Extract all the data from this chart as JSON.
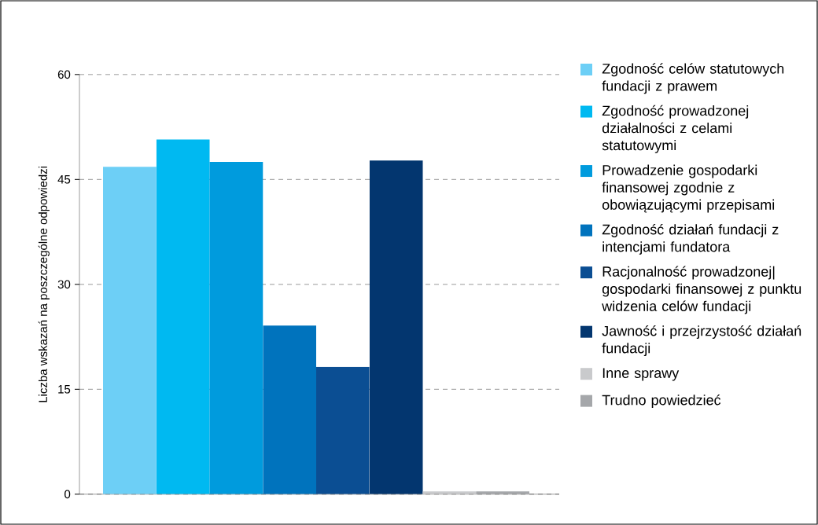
{
  "chart_data": {
    "type": "bar",
    "ylabel": "Liczba wskazań na poszczególne odpowiedzi",
    "categories": [
      null
    ],
    "series": [
      {
        "name": "Zgodność celów statutowych fundacji z prawem",
        "color": "#6dcff6",
        "values": [
          46.8
        ]
      },
      {
        "name": "Zgodność prowadzonej działalności z celami statutowymi",
        "color": "#00b9f1",
        "values": [
          50.7
        ]
      },
      {
        "name": "Prowadzenie gospodarki finansowej zgodnie z obowiązującymi przepisami",
        "color": "#009bdd",
        "values": [
          47.5
        ]
      },
      {
        "name": "Zgodność działań fundacji z intencjami fundatora",
        "color": "#0073bd",
        "values": [
          24.1
        ]
      },
      {
        "name": "Racjonalność prowadzonej| gospodarki finansowej z punktu widzenia celów fundacji",
        "color": "#0b4e93",
        "values": [
          18.2
        ]
      },
      {
        "name": "Jawność i przejrzystość działań fundacji",
        "color": "#03366f",
        "values": [
          47.7
        ]
      },
      {
        "name": "Inne sprawy",
        "color": "#c9cacc",
        "values": [
          0.4
        ]
      },
      {
        "name": "Trudno powiedzieć",
        "color": "#a5a7aa",
        "values": [
          0.4
        ]
      }
    ],
    "ylim": [
      0,
      60
    ],
    "yticks": [
      0,
      15,
      30,
      45,
      60
    ],
    "grid": "y",
    "legend": "right"
  }
}
